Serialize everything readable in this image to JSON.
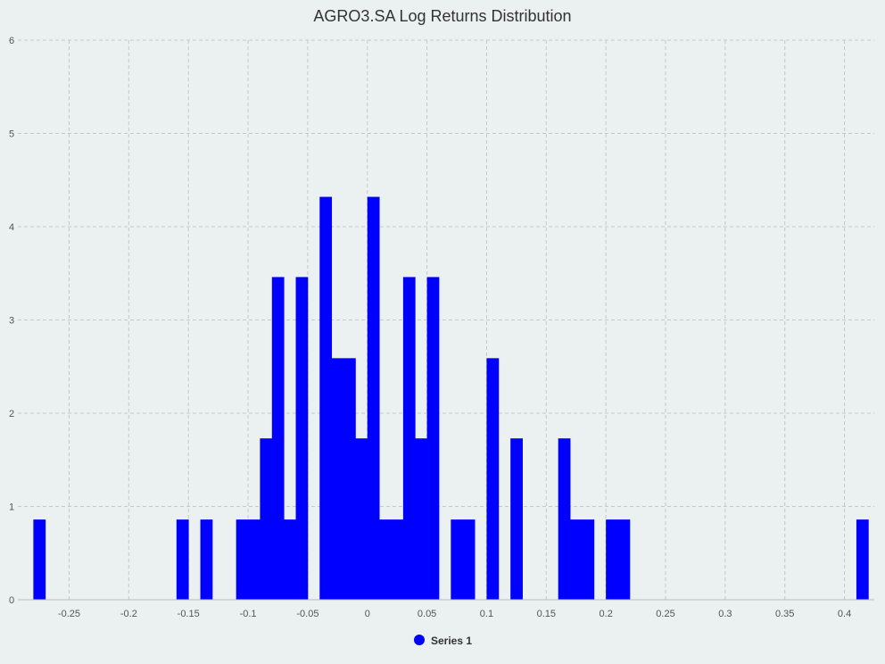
{
  "chart_data": {
    "type": "bar",
    "title": "AGRO3.SA Log Returns Distribution",
    "xlabel": "",
    "ylabel": "",
    "xlim": [
      -0.293,
      0.425
    ],
    "ylim": [
      0,
      6
    ],
    "x_ticks": [
      "-0.25",
      "-0.2",
      "-0.15",
      "-0.1",
      "-0.05",
      "0",
      "0.05",
      "0.1",
      "0.15",
      "0.2",
      "0.25",
      "0.3",
      "0.35",
      "0.4"
    ],
    "x_tick_values": [
      -0.25,
      -0.2,
      -0.15,
      -0.1,
      -0.05,
      0,
      0.05,
      0.1,
      0.15,
      0.2,
      0.25,
      0.3,
      0.35,
      0.4
    ],
    "y_ticks": [
      "0",
      "1",
      "2",
      "3",
      "4",
      "5",
      "6"
    ],
    "y_tick_values": [
      0,
      1,
      2,
      3,
      4,
      5,
      6
    ],
    "grid": true,
    "legend_position": "bottom-center",
    "bin_width": 0.01,
    "series": [
      {
        "name": "Series 1",
        "color": "#0000ff",
        "bins": [
          {
            "x0": -0.28,
            "x1": -0.27,
            "value": 0.86
          },
          {
            "x0": -0.16,
            "x1": -0.15,
            "value": 0.86
          },
          {
            "x0": -0.14,
            "x1": -0.13,
            "value": 0.86
          },
          {
            "x0": -0.11,
            "x1": -0.1,
            "value": 0.86
          },
          {
            "x0": -0.1,
            "x1": -0.09,
            "value": 0.86
          },
          {
            "x0": -0.09,
            "x1": -0.08,
            "value": 1.73
          },
          {
            "x0": -0.08,
            "x1": -0.07,
            "value": 3.46
          },
          {
            "x0": -0.07,
            "x1": -0.06,
            "value": 0.86
          },
          {
            "x0": -0.06,
            "x1": -0.05,
            "value": 3.46
          },
          {
            "x0": -0.04,
            "x1": -0.03,
            "value": 4.32
          },
          {
            "x0": -0.03,
            "x1": -0.02,
            "value": 2.59
          },
          {
            "x0": -0.02,
            "x1": -0.01,
            "value": 2.59
          },
          {
            "x0": -0.01,
            "x1": 0.0,
            "value": 1.73
          },
          {
            "x0": 0.0,
            "x1": 0.01,
            "value": 4.32
          },
          {
            "x0": 0.01,
            "x1": 0.02,
            "value": 0.86
          },
          {
            "x0": 0.02,
            "x1": 0.03,
            "value": 0.86
          },
          {
            "x0": 0.03,
            "x1": 0.04,
            "value": 3.46
          },
          {
            "x0": 0.04,
            "x1": 0.05,
            "value": 1.73
          },
          {
            "x0": 0.05,
            "x1": 0.06,
            "value": 3.46
          },
          {
            "x0": 0.07,
            "x1": 0.08,
            "value": 0.86
          },
          {
            "x0": 0.08,
            "x1": 0.09,
            "value": 0.86
          },
          {
            "x0": 0.1,
            "x1": 0.11,
            "value": 2.59
          },
          {
            "x0": 0.12,
            "x1": 0.13,
            "value": 1.73
          },
          {
            "x0": 0.16,
            "x1": 0.17,
            "value": 1.73
          },
          {
            "x0": 0.17,
            "x1": 0.18,
            "value": 0.86
          },
          {
            "x0": 0.18,
            "x1": 0.19,
            "value": 0.86
          },
          {
            "x0": 0.2,
            "x1": 0.21,
            "value": 0.86
          },
          {
            "x0": 0.21,
            "x1": 0.22,
            "value": 0.86
          },
          {
            "x0": 0.41,
            "x1": 0.42,
            "value": 0.86
          }
        ]
      }
    ]
  }
}
